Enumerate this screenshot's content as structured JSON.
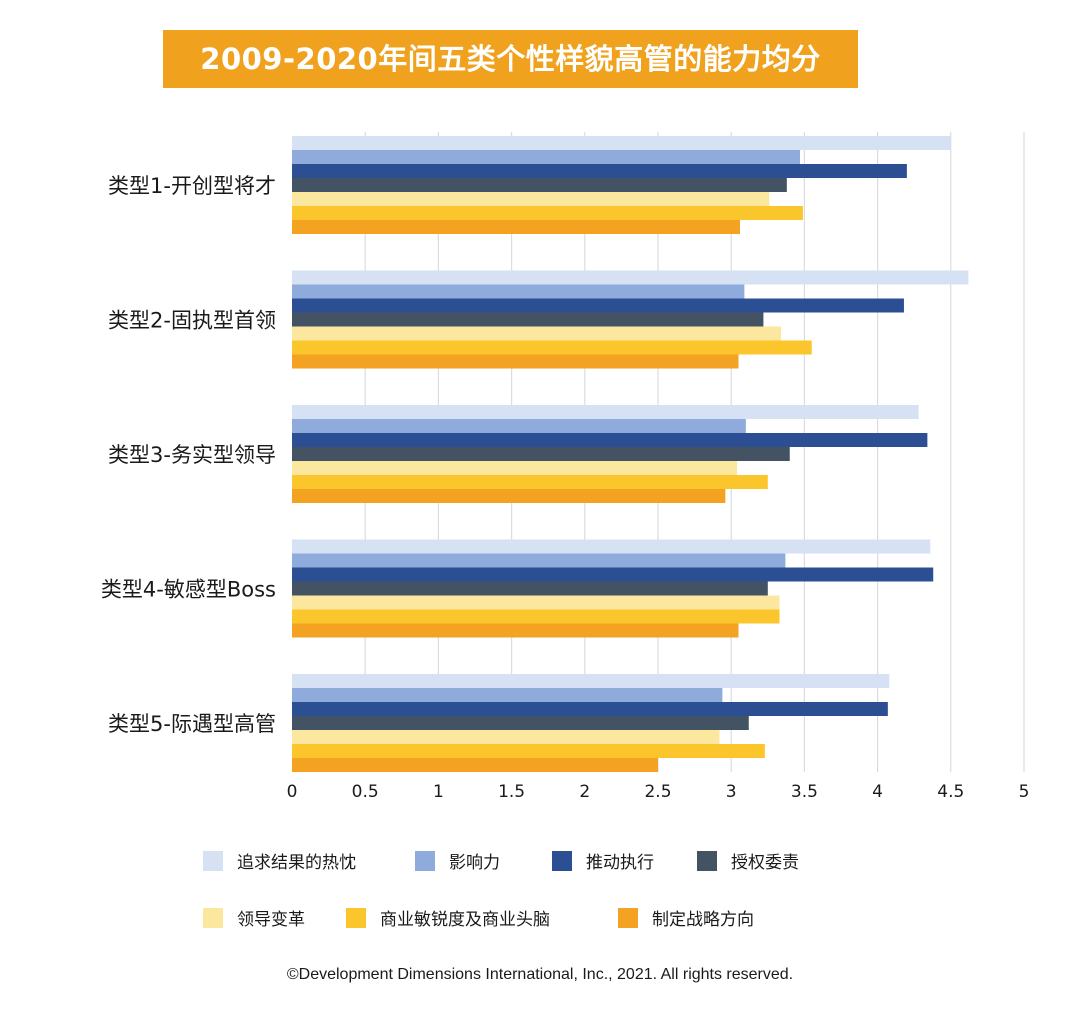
{
  "chart_data": {
    "type": "bar",
    "orientation": "horizontal",
    "title": "2009-2020年间五类个性样貌高管的能力均分",
    "categories": [
      "类型1-开创型将才",
      "类型2-固执型首领",
      "类型3-务实型领导",
      "类型4-敏感型Boss",
      "类型5-际遇型高管"
    ],
    "xlim": [
      0,
      5
    ],
    "x_ticks": [
      "0",
      "0.5",
      "1",
      "1.5",
      "2",
      "2.5",
      "3",
      "3.5",
      "4",
      "4.5",
      "5"
    ],
    "grid": true,
    "legend_position": "bottom",
    "series": [
      {
        "name": "追求结果的热忱",
        "color": "#d6e2f3",
        "values": [
          4.5,
          4.62,
          4.28,
          4.36,
          4.08
        ]
      },
      {
        "name": "影响力",
        "color": "#8eabdb",
        "values": [
          3.47,
          3.09,
          3.1,
          3.37,
          2.94
        ]
      },
      {
        "name": "推动执行",
        "color": "#2c4f94",
        "values": [
          4.2,
          4.18,
          4.34,
          4.38,
          4.07
        ]
      },
      {
        "name": "授权委责",
        "color": "#435363",
        "values": [
          3.38,
          3.22,
          3.4,
          3.25,
          3.12
        ]
      },
      {
        "name": "领导变革",
        "color": "#fbe79e",
        "values": [
          3.26,
          3.34,
          3.04,
          3.33,
          2.92
        ]
      },
      {
        "name": "商业敏锐度及商业头脑",
        "color": "#fbc62c",
        "values": [
          3.49,
          3.55,
          3.25,
          3.33,
          3.23
        ]
      },
      {
        "name": "制定战略方向",
        "color": "#f4a221",
        "values": [
          3.06,
          3.05,
          2.96,
          3.05,
          2.5
        ]
      }
    ]
  },
  "footer": {
    "copyright": "©Development Dimensions International, Inc., 2021. All rights reserved."
  }
}
